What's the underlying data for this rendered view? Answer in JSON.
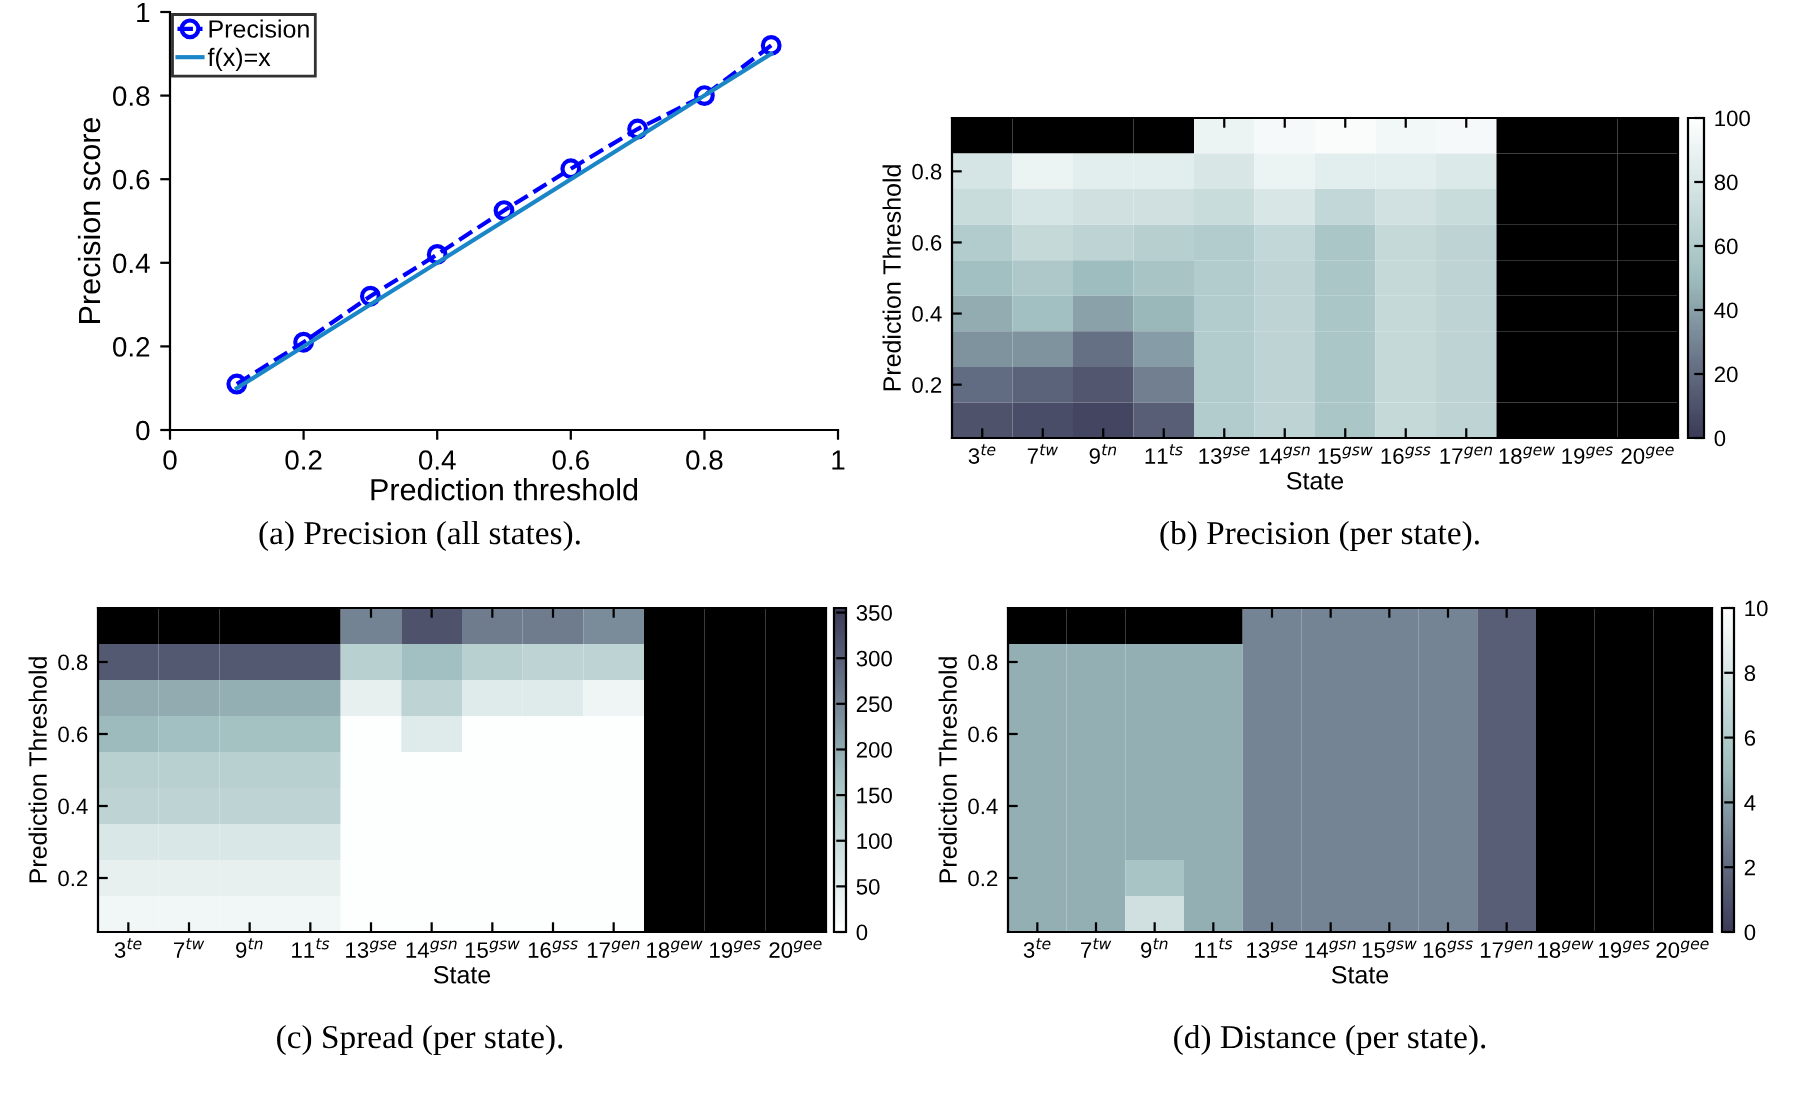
{
  "chart_data": [
    {
      "type": "line",
      "xlabel": "Prediction threshold",
      "ylabel": "Precision score",
      "xlim": [
        0,
        1
      ],
      "ylim": [
        0,
        1
      ],
      "xticks": [
        0,
        0.2,
        0.4,
        0.6,
        0.8,
        1
      ],
      "yticks": [
        0,
        0.2,
        0.4,
        0.6,
        0.8,
        1
      ],
      "grid": false,
      "legend": "top left",
      "x": [
        0.1,
        0.2,
        0.3,
        0.4,
        0.5,
        0.6,
        0.7,
        0.8,
        0.9
      ],
      "series": [
        {
          "name": "Precision",
          "color": "#0000ff",
          "marker": "circle",
          "line_style": "dashed",
          "values": [
            0.11,
            0.21,
            0.32,
            0.42,
            0.525,
            0.625,
            0.72,
            0.8,
            0.92
          ]
        },
        {
          "name": "f(x)=x",
          "color": "#1a86c8",
          "marker": "none",
          "line_style": "solid",
          "values": [
            0.1,
            0.2,
            0.3,
            0.4,
            0.5,
            0.6,
            0.7,
            0.8,
            0.9
          ]
        }
      ],
      "annotations": [
        "(a) Precision (all states)."
      ]
    },
    {
      "type": "heatmap",
      "xlabel": "State",
      "ylabel": "Prediction Threshold",
      "ylim": [
        0.05,
        0.95
      ],
      "yticks": [
        0.2,
        0.4,
        0.6,
        0.8
      ],
      "categories": [
        "3$^{te}$",
        "7$^{tw}$",
        "9$^{tn}$",
        "11$^{ts}$",
        "13$^{gse}$",
        "14$^{gsn}$",
        "15$^{gsw}$",
        "16$^{gss}$",
        "17$^{gen}$",
        "18$^{gew}$",
        "19$^{ges}$",
        "20$^{gee}$"
      ],
      "colors": [
        "#3b3a57",
        "#6b778b",
        "#9ebdbe",
        "#cfe0e0",
        "#ffffff"
      ],
      "clim": [
        0,
        100
      ],
      "cticks": [
        0,
        20,
        40,
        60,
        80,
        100
      ],
      "cells": [
        [
          null,
          null,
          null,
          null,
          90,
          95,
          97,
          93,
          95,
          null,
          null,
          null
        ],
        [
          78,
          90,
          85,
          85,
          80,
          90,
          85,
          85,
          82,
          null,
          null,
          null
        ],
        [
          72,
          78,
          75,
          75,
          72,
          80,
          68,
          76,
          72,
          null,
          null,
          null
        ],
        [
          60,
          70,
          66,
          63,
          60,
          68,
          56,
          70,
          66,
          null,
          null,
          null
        ],
        [
          52,
          58,
          50,
          55,
          60,
          66,
          56,
          70,
          66,
          null,
          null,
          null
        ],
        [
          44,
          52,
          40,
          48,
          60,
          66,
          56,
          70,
          66,
          null,
          null,
          null
        ],
        [
          35,
          35,
          22,
          38,
          60,
          66,
          56,
          70,
          66,
          null,
          null,
          null
        ],
        [
          20,
          17,
          12,
          28,
          60,
          66,
          56,
          70,
          66,
          null,
          null,
          null
        ],
        [
          10,
          8,
          5,
          15,
          60,
          66,
          56,
          70,
          66,
          null,
          null,
          null
        ]
      ],
      "annotations": [
        "(b) Precision (per state)."
      ]
    },
    {
      "type": "heatmap",
      "xlabel": "State",
      "ylabel": "Prediction Threshold",
      "ylim": [
        0.05,
        0.95
      ],
      "yticks": [
        0.2,
        0.4,
        0.6,
        0.8
      ],
      "categories": [
        "3$^{te}$",
        "7$^{tw}$",
        "9$^{tn}$",
        "11$^{ts}$",
        "13$^{gse}$",
        "14$^{gsn}$",
        "15$^{gsw}$",
        "16$^{gss}$",
        "17$^{gen}$",
        "18$^{gew}$",
        "19$^{ges}$",
        "20$^{gee}$"
      ],
      "colors": [
        "#ffffff",
        "#cfe0e0",
        "#9ebdbe",
        "#6b778b",
        "#3b3a57"
      ],
      "clim": [
        0,
        355
      ],
      "cticks": [
        0,
        50,
        100,
        150,
        200,
        250,
        300,
        350
      ],
      "cells": [
        [
          null,
          null,
          null,
          null,
          250,
          320,
          260,
          260,
          240,
          null,
          null,
          null
        ],
        [
          310,
          310,
          310,
          310,
          130,
          170,
          130,
          120,
          120,
          null,
          null,
          null
        ],
        [
          200,
          200,
          195,
          195,
          45,
          120,
          60,
          60,
          30,
          null,
          null,
          null
        ],
        [
          180,
          170,
          165,
          165,
          5,
          60,
          5,
          5,
          5,
          null,
          null,
          null
        ],
        [
          130,
          130,
          130,
          130,
          5,
          5,
          5,
          5,
          5,
          null,
          null,
          null
        ],
        [
          120,
          120,
          120,
          120,
          5,
          5,
          5,
          5,
          5,
          null,
          null,
          null
        ],
        [
          70,
          70,
          70,
          70,
          5,
          5,
          5,
          5,
          5,
          null,
          null,
          null
        ],
        [
          45,
          45,
          45,
          45,
          5,
          5,
          5,
          5,
          5,
          null,
          null,
          null
        ],
        [
          25,
          25,
          25,
          25,
          5,
          5,
          5,
          5,
          5,
          null,
          null,
          null
        ]
      ],
      "annotations": [
        "(c) Spread (per state)."
      ]
    },
    {
      "type": "heatmap",
      "xlabel": "State",
      "ylabel": "Prediction Threshold",
      "ylim": [
        0.05,
        0.95
      ],
      "yticks": [
        0.2,
        0.4,
        0.6,
        0.8
      ],
      "categories": [
        "3$^{te}$",
        "7$^{tw}$",
        "9$^{tn}$",
        "11$^{ts}$",
        "13$^{gse}$",
        "14$^{gsn}$",
        "15$^{gsw}$",
        "16$^{gss}$",
        "17$^{gen}$",
        "18$^{gew}$",
        "19$^{ges}$",
        "20$^{gee}$"
      ],
      "colors": [
        "#3b3a57",
        "#6b778b",
        "#9ebdbe",
        "#cfe0e0",
        "#ffffff"
      ],
      "clim": [
        0,
        10
      ],
      "cticks": [
        0,
        2,
        4,
        6,
        8,
        10
      ],
      "cells": [
        [
          null,
          null,
          null,
          null,
          3,
          3,
          3,
          3,
          1.5,
          null,
          null,
          null
        ],
        [
          4.5,
          4.5,
          4.5,
          4.5,
          3,
          3,
          3,
          3,
          1.5,
          null,
          null,
          null
        ],
        [
          4.5,
          4.5,
          4.5,
          4.5,
          3,
          3,
          3,
          3,
          1.5,
          null,
          null,
          null
        ],
        [
          4.5,
          4.5,
          4.5,
          4.5,
          3,
          3,
          3,
          3,
          1.5,
          null,
          null,
          null
        ],
        [
          4.5,
          4.5,
          4.5,
          4.5,
          3,
          3,
          3,
          3,
          1.5,
          null,
          null,
          null
        ],
        [
          4.5,
          4.5,
          4.5,
          4.5,
          3,
          3,
          3,
          3,
          1.5,
          null,
          null,
          null
        ],
        [
          4.5,
          4.5,
          4.5,
          4.5,
          3,
          3,
          3,
          3,
          1.5,
          null,
          null,
          null
        ],
        [
          4.5,
          4.5,
          5.5,
          4.5,
          3,
          3,
          3,
          3,
          1.5,
          null,
          null,
          null
        ],
        [
          4.5,
          4.5,
          7.5,
          4.5,
          3,
          3,
          3,
          3,
          1.5,
          null,
          null,
          null
        ]
      ],
      "annotations": [
        "(d) Distance (per state)."
      ]
    }
  ]
}
